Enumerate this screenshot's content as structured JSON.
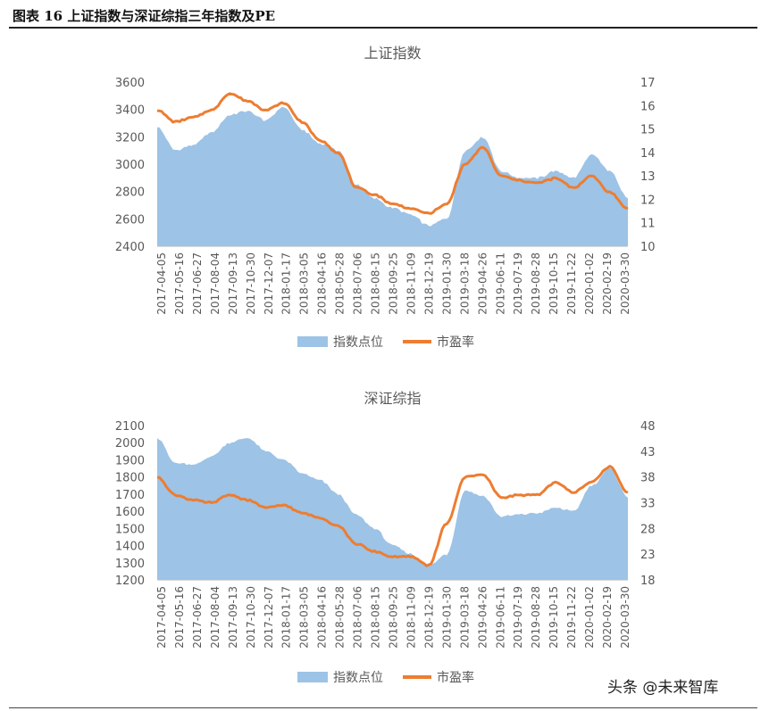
{
  "figure": {
    "title": "图表 16 上证指数与深证综指三年指数及PE",
    "watermark": "头条 @未来智库"
  },
  "colors": {
    "area": "#9DC3E6",
    "line": "#ED7D31",
    "axis": "#D9D9D9",
    "text": "#595959"
  },
  "chart_data": [
    {
      "type": "area",
      "title": "上证指数",
      "x_tick_labels": [
        "2017-04-05",
        "2017-05-16",
        "2017-06-27",
        "2017-08-04",
        "2017-09-13",
        "2017-10-30",
        "2017-12-07",
        "2018-01-17",
        "2018-03-05",
        "2018-04-16",
        "2018-05-28",
        "2018-07-06",
        "2018-08-15",
        "2018-09-25",
        "2018-11-09",
        "2018-12-19",
        "2019-01-30",
        "2019-03-18",
        "2019-04-26",
        "2019-06-11",
        "2019-07-19",
        "2019-08-28",
        "2019-10-15",
        "2019-11-22",
        "2020-01-02",
        "2020-02-19",
        "2020-03-30"
      ],
      "y_left": {
        "min": 2400,
        "max": 3600,
        "ticks": [
          2400,
          2600,
          2800,
          3000,
          3200,
          3400,
          3600
        ]
      },
      "y_right": {
        "min": 10,
        "max": 17,
        "ticks": [
          10,
          11,
          12,
          13,
          14,
          15,
          16,
          17
        ]
      },
      "legend_position": "bottom",
      "grid": false,
      "series": [
        {
          "name": "指数点位",
          "type": "area",
          "axis": "left",
          "values": [
            3270,
            3100,
            3140,
            3230,
            3360,
            3390,
            3320,
            3420,
            3250,
            3150,
            3100,
            2850,
            2750,
            2680,
            2630,
            2550,
            2600,
            3100,
            3200,
            2950,
            2900,
            2900,
            2950,
            2900,
            3070,
            2950,
            2750
          ]
        },
        {
          "name": "市盈率",
          "type": "line",
          "axis": "right",
          "values": [
            15.8,
            15.3,
            15.5,
            15.8,
            16.5,
            16.2,
            15.8,
            16.1,
            15.3,
            14.5,
            14.0,
            12.5,
            12.2,
            11.8,
            11.6,
            11.4,
            11.8,
            13.5,
            14.2,
            13.0,
            12.8,
            12.7,
            12.9,
            12.5,
            13.0,
            12.3,
            11.6
          ]
        }
      ]
    },
    {
      "type": "area",
      "title": "深证综指",
      "x_tick_labels": [
        "2017-04-05",
        "2017-05-16",
        "2017-06-27",
        "2017-08-04",
        "2017-09-13",
        "2017-10-30",
        "2017-12-07",
        "2018-01-17",
        "2018-03-05",
        "2018-04-16",
        "2018-05-28",
        "2018-07-06",
        "2018-08-15",
        "2018-09-25",
        "2018-11-09",
        "2018-12-19",
        "2019-01-30",
        "2019-03-18",
        "2019-04-26",
        "2019-06-11",
        "2019-07-19",
        "2019-08-28",
        "2019-10-15",
        "2019-11-22",
        "2020-01-02",
        "2020-02-19",
        "2020-03-30"
      ],
      "y_left": {
        "min": 1200,
        "max": 2100,
        "ticks": [
          1200,
          1300,
          1400,
          1500,
          1600,
          1700,
          1800,
          1900,
          2000,
          2100
        ]
      },
      "y_right": {
        "min": 18,
        "max": 48,
        "ticks": [
          18,
          23,
          28,
          33,
          38,
          43,
          48
        ]
      },
      "legend_position": "bottom",
      "grid": false,
      "series": [
        {
          "name": "指数点位",
          "type": "area",
          "axis": "left",
          "values": [
            2030,
            1880,
            1870,
            1920,
            2000,
            2030,
            1950,
            1900,
            1820,
            1780,
            1700,
            1580,
            1500,
            1400,
            1350,
            1280,
            1350,
            1720,
            1690,
            1570,
            1580,
            1590,
            1620,
            1600,
            1750,
            1850,
            1680
          ]
        },
        {
          "name": "市盈率",
          "type": "line",
          "axis": "right",
          "values": [
            38,
            34.5,
            33.5,
            33,
            34.5,
            33.5,
            32,
            32.5,
            31,
            30,
            28.5,
            25,
            23.5,
            22.5,
            22.5,
            20.8,
            29,
            38,
            38.5,
            34,
            34.5,
            34.5,
            37,
            35,
            37,
            40,
            35
          ]
        }
      ]
    }
  ]
}
